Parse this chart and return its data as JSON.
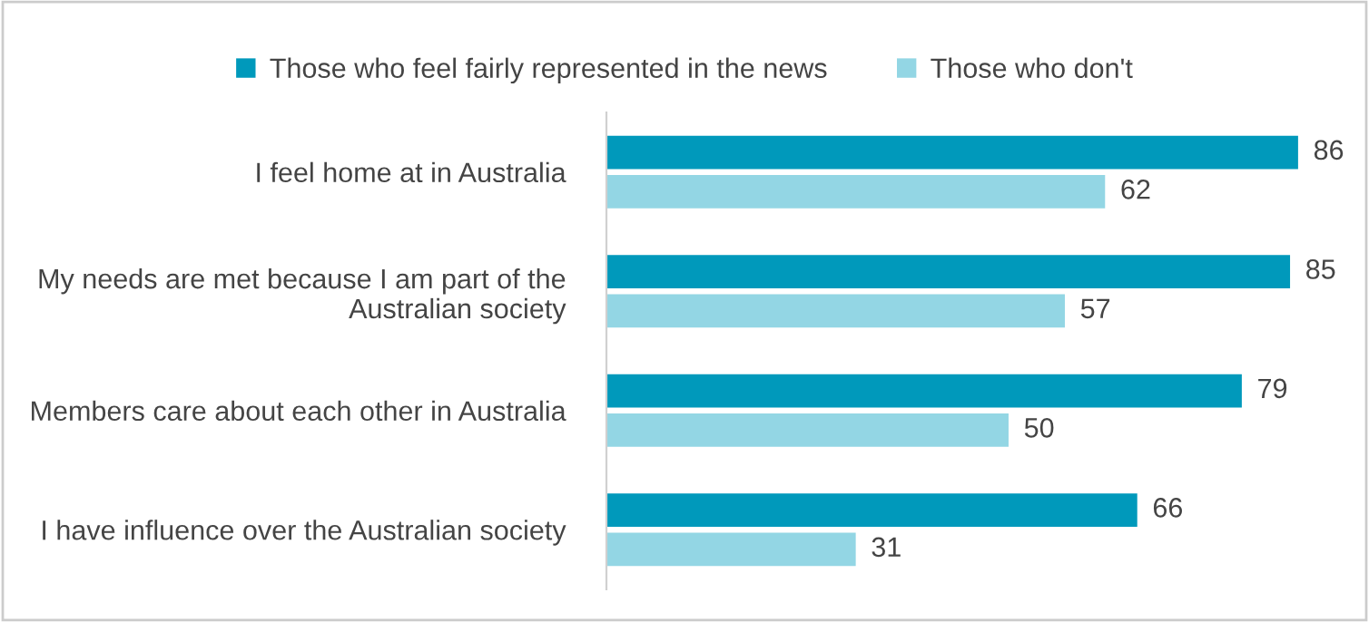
{
  "chart_data": {
    "type": "bar",
    "orientation": "horizontal",
    "categories": [
      "I feel home at in Australia",
      "My needs are met because I am part of the\nAustralian society",
      "Members care about each other in Australia",
      "I have influence over the Australian society"
    ],
    "series": [
      {
        "name": "Those who feel fairly represented in the news",
        "color": "#0099bb",
        "values": [
          86,
          85,
          79,
          66
        ]
      },
      {
        "name": "Those who don't",
        "color": "#93d6e4",
        "values": [
          62,
          57,
          50,
          31
        ]
      }
    ],
    "data_labels": true,
    "legend": "top",
    "grid": false,
    "tick_labels": "y"
  }
}
